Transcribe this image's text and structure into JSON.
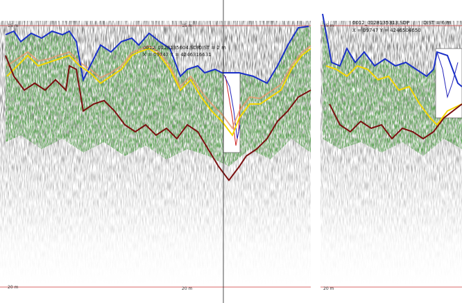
{
  "left_panel": {
    "depth_labels": [
      "15 m",
      "15 m",
      "20 m",
      "20 m"
    ],
    "info": {
      "file": "0012_0128135604.SDP",
      "dist": "DIST = 2 m",
      "coords": "X = 09747 Y = 4246316631"
    }
  },
  "right_panel": {
    "depth_labels": [
      "15 m",
      "20 m"
    ],
    "info": {
      "file": "0012_0128135313.SDP",
      "dist": "DIST = 6 m",
      "coords": "X = 09747 Y = 4246504650"
    }
  }
}
